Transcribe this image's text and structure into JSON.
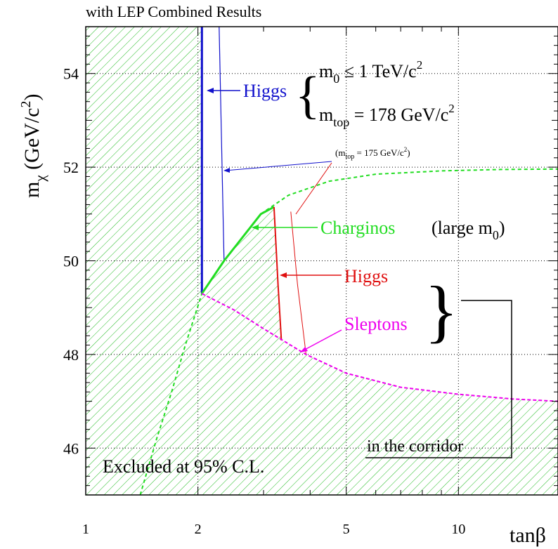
{
  "chart_data": {
    "type": "line",
    "title": "with LEP Combined Results",
    "xlabel": "tanβ",
    "ylabel": {
      "base": "m",
      "sub": "χ",
      "rest": " (GeV/c",
      "sup": "2",
      "end": ")"
    },
    "x_scale": "log",
    "xlim": [
      1,
      18.5
    ],
    "ylim": [
      45,
      55
    ],
    "x_ticks": [
      {
        "value": 1,
        "label": "1"
      },
      {
        "value": 2,
        "label": "2"
      },
      {
        "value": 5,
        "label": "5"
      },
      {
        "value": 10,
        "label": "10"
      }
    ],
    "y_ticks": [
      {
        "value": 46,
        "label": "46"
      },
      {
        "value": 48,
        "label": "48"
      },
      {
        "value": 50,
        "label": "50"
      },
      {
        "value": 52,
        "label": "52"
      },
      {
        "value": 54,
        "label": "54"
      }
    ],
    "grid": true,
    "colors": {
      "higgs_blue": "#1010cc",
      "charginos": "#22dd22",
      "higgs_red": "#e01010",
      "sleptons": "#ee00ee",
      "hatch": "#22bb22"
    },
    "excluded_region": {
      "label": "Excluded at 95% C.L.",
      "boundary": [
        [
          2.05,
          55
        ],
        [
          2.05,
          49.3
        ],
        [
          2.35,
          50.0
        ],
        [
          2.95,
          51.0
        ],
        [
          3.2,
          51.15
        ],
        [
          3.35,
          48.3
        ],
        [
          3.9,
          48.0
        ],
        [
          5,
          47.6
        ],
        [
          7,
          47.3
        ],
        [
          10,
          47.15
        ],
        [
          14,
          47.05
        ],
        [
          18.5,
          47.0
        ]
      ]
    },
    "series": [
      {
        "name": "Higgs (blue)",
        "points": [
          [
            2.05,
            55
          ],
          [
            2.05,
            49.3
          ]
        ]
      },
      {
        "name": "Higgs (blue, mtop=175)",
        "points": [
          [
            2.28,
            55
          ],
          [
            2.35,
            50.0
          ]
        ]
      },
      {
        "name": "Charginos",
        "points": [
          [
            2.05,
            49.3
          ],
          [
            2.35,
            50.0
          ],
          [
            2.95,
            51.0
          ],
          [
            3.2,
            51.15
          ]
        ]
      },
      {
        "name": "Charginos dashed high",
        "points": [
          [
            2.95,
            51.0
          ],
          [
            3.5,
            51.4
          ],
          [
            4.5,
            51.7
          ],
          [
            6,
            51.85
          ],
          [
            9,
            51.92
          ],
          [
            13,
            51.95
          ],
          [
            18.5,
            51.96
          ]
        ]
      },
      {
        "name": "Charginos dashed low",
        "points": [
          [
            1.4,
            45.0
          ],
          [
            1.55,
            46.2
          ],
          [
            1.7,
            47.2
          ],
          [
            1.85,
            48.2
          ],
          [
            2.05,
            49.3
          ]
        ]
      },
      {
        "name": "Higgs (red)",
        "points": [
          [
            3.2,
            51.15
          ],
          [
            3.28,
            49.5
          ],
          [
            3.35,
            48.3
          ]
        ]
      },
      {
        "name": "Higgs (red, mtop=175)",
        "points": [
          [
            3.55,
            51.05
          ],
          [
            3.7,
            49.5
          ],
          [
            3.9,
            48.0
          ]
        ]
      },
      {
        "name": "Sleptons",
        "points": [
          [
            2.05,
            49.3
          ],
          [
            2.5,
            48.95
          ],
          [
            3.0,
            48.55
          ],
          [
            3.9,
            48.0
          ],
          [
            5,
            47.6
          ],
          [
            7,
            47.3
          ],
          [
            10,
            47.15
          ],
          [
            14,
            47.05
          ],
          [
            18.5,
            47.0
          ]
        ]
      }
    ],
    "annotations": {
      "higgs_blue": "Higgs",
      "brace_top": {
        "m0_base": "m",
        "m0_sub": "0",
        "m0_rest": "  ≤ 1 TeV/c",
        "m0_sup": "2",
        "mtop_base": "m",
        "mtop_sub": "top",
        "mtop_rest": " = 178 GeV/c",
        "mtop_sup": "2"
      },
      "mtop_175": {
        "open": "(m",
        "sub": "top",
        "rest": " = 175 GeV/c",
        "sup": "2",
        "close": ")"
      },
      "charginos": "Charginos",
      "large_m0": {
        "open": "(large m",
        "sub": "0",
        "close": ")"
      },
      "higgs_red": "Higgs",
      "sleptons": "Sleptons",
      "corridor": "in the corridor"
    }
  }
}
